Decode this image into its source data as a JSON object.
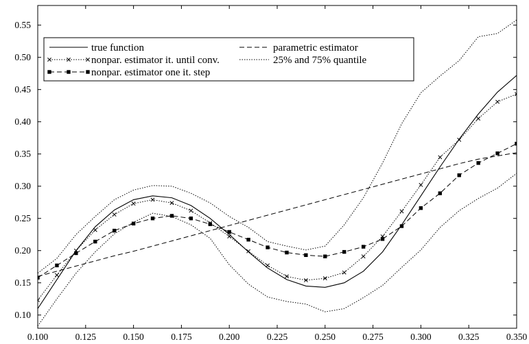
{
  "chart_data": {
    "type": "line",
    "xlim": [
      0.1,
      0.35
    ],
    "ylim": [
      0.0795,
      0.5805
    ],
    "x_ticks": [
      "0.100",
      "0.125",
      "0.150",
      "0.175",
      "0.200",
      "0.225",
      "0.250",
      "0.275",
      "0.300",
      "0.325",
      "0.350"
    ],
    "y_ticks": [
      "0.10",
      "0.15",
      "0.20",
      "0.25",
      "0.30",
      "0.35",
      "0.40",
      "0.45",
      "0.50",
      "0.55"
    ],
    "grid": false,
    "legend_position": "top-left",
    "x": [
      0.1,
      0.11,
      0.12,
      0.13,
      0.14,
      0.15,
      0.16,
      0.17,
      0.18,
      0.19,
      0.2,
      0.21,
      0.22,
      0.23,
      0.24,
      0.25,
      0.26,
      0.27,
      0.28,
      0.29,
      0.3,
      0.31,
      0.32,
      0.33,
      0.34,
      0.35
    ],
    "series": [
      {
        "name": "true function",
        "style": "solid",
        "marker": "none",
        "values": [
          0.11,
          0.155,
          0.2,
          0.237,
          0.263,
          0.279,
          0.285,
          0.282,
          0.27,
          0.25,
          0.225,
          0.198,
          0.173,
          0.155,
          0.145,
          0.143,
          0.15,
          0.168,
          0.198,
          0.24,
          0.285,
          0.33,
          0.373,
          0.412,
          0.446,
          0.472
        ]
      },
      {
        "name": "parametric estimator",
        "style": "dashed",
        "marker": "none",
        "values": [
          0.16,
          0.168,
          0.176,
          0.184,
          0.192,
          0.199,
          0.207,
          0.215,
          0.223,
          0.231,
          0.239,
          0.247,
          0.255,
          0.263,
          0.271,
          0.279,
          0.287,
          0.295,
          0.303,
          0.311,
          0.319,
          0.327,
          0.335,
          0.342,
          0.347,
          0.352
        ]
      },
      {
        "name": "nonpar. estimator it. until conv.",
        "style": "dotted",
        "marker": "x",
        "values": [
          0.123,
          0.162,
          0.2,
          0.232,
          0.256,
          0.273,
          0.279,
          0.274,
          0.262,
          0.243,
          0.222,
          0.199,
          0.177,
          0.16,
          0.154,
          0.157,
          0.166,
          0.191,
          0.222,
          0.261,
          0.302,
          0.345,
          0.372,
          0.405,
          0.431,
          0.443
        ]
      },
      {
        "name": "nonpar. estimator one it. step",
        "style": "dashed",
        "marker": "square",
        "values": [
          0.158,
          0.177,
          0.196,
          0.214,
          0.231,
          0.242,
          0.25,
          0.254,
          0.25,
          0.241,
          0.229,
          0.217,
          0.205,
          0.197,
          0.193,
          0.191,
          0.198,
          0.206,
          0.218,
          0.238,
          0.266,
          0.289,
          0.317,
          0.336,
          0.351,
          0.366
        ]
      },
      {
        "name": "25% and 75% quantile",
        "style": "dotted",
        "marker": "none",
        "values_upper": [
          0.165,
          0.188,
          0.225,
          0.253,
          0.279,
          0.294,
          0.301,
          0.3,
          0.289,
          0.274,
          0.253,
          0.236,
          0.214,
          0.207,
          0.201,
          0.207,
          0.24,
          0.282,
          0.336,
          0.397,
          0.445,
          0.471,
          0.495,
          0.532,
          0.537,
          0.558
        ],
        "values_lower": [
          0.083,
          0.125,
          0.165,
          0.198,
          0.226,
          0.244,
          0.258,
          0.253,
          0.24,
          0.219,
          0.178,
          0.148,
          0.128,
          0.121,
          0.117,
          0.105,
          0.11,
          0.127,
          0.146,
          0.174,
          0.201,
          0.236,
          0.262,
          0.281,
          0.297,
          0.32
        ]
      }
    ]
  }
}
